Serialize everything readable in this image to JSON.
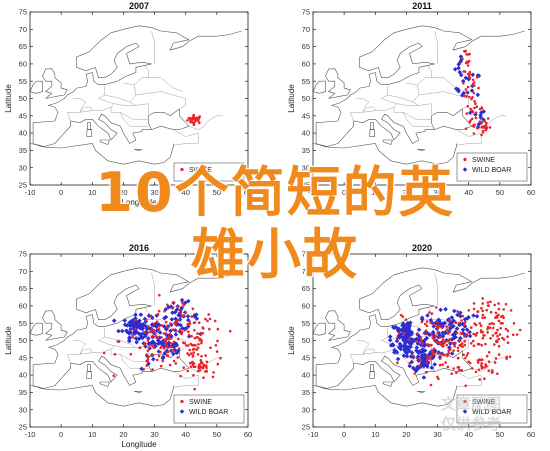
{
  "panels": [
    {
      "id": "p2007",
      "title": "2007",
      "show_ylabel": true,
      "show_xlabel": true,
      "legend": [
        "SWINE"
      ],
      "swine": {
        "clusters": [
          [
            43,
            44,
            1.2,
            0.6,
            30
          ]
        ]
      },
      "boar": {
        "clusters": []
      }
    },
    {
      "id": "p2011",
      "title": "2011",
      "show_ylabel": true,
      "show_xlabel": false,
      "legend": [
        "SWINE",
        "WILD BOAR"
      ],
      "swine": {
        "clusters": [
          [
            40,
            55,
            1.5,
            3.5,
            25
          ],
          [
            42,
            45,
            1.5,
            2.5,
            25
          ],
          [
            44,
            42,
            1.5,
            1.5,
            20
          ],
          [
            39,
            62,
            1.0,
            1.5,
            8
          ]
        ]
      },
      "boar": {
        "clusters": [
          [
            40,
            53,
            2.0,
            2.5,
            15
          ],
          [
            38,
            60,
            1.5,
            2.0,
            8
          ],
          [
            43,
            44,
            1.2,
            1.5,
            10
          ]
        ]
      }
    },
    {
      "id": "p2016",
      "title": "2016",
      "show_ylabel": true,
      "show_xlabel": true,
      "legend": [
        "SWINE",
        "WILD BOAR"
      ],
      "swine": {
        "clusters": [
          [
            35,
            50,
            8,
            4,
            110
          ],
          [
            45,
            48,
            4,
            4,
            45
          ],
          [
            38,
            58,
            3,
            2,
            20
          ],
          [
            44,
            42,
            2,
            1.5,
            25
          ],
          [
            30,
            45,
            3,
            2,
            15
          ]
        ]
      },
      "boar": {
        "clusters": [
          [
            24,
            54,
            2,
            1.5,
            70
          ],
          [
            30,
            52,
            4,
            3,
            70
          ],
          [
            38,
            57,
            3,
            2,
            40
          ],
          [
            34,
            47,
            3,
            2,
            25
          ]
        ]
      }
    },
    {
      "id": "p2020",
      "title": "2020",
      "show_ylabel": true,
      "show_xlabel": false,
      "legend": [
        "SWINE",
        "WILD BOAR"
      ],
      "swine": {
        "clusters": [
          [
            35,
            50,
            8,
            5,
            140
          ],
          [
            48,
            52,
            5,
            3,
            50
          ],
          [
            30,
            45,
            4,
            3,
            30
          ],
          [
            50,
            58,
            4,
            2,
            25
          ],
          [
            44,
            42,
            2,
            1.5,
            20
          ]
        ]
      },
      "boar": {
        "clusters": [
          [
            20,
            51,
            2.5,
            2.5,
            90
          ],
          [
            26,
            45,
            2,
            2,
            70
          ],
          [
            30,
            52,
            4,
            3,
            60
          ],
          [
            36,
            55,
            3,
            2,
            30
          ],
          [
            18,
            48,
            1.5,
            1.5,
            20
          ]
        ]
      }
    }
  ],
  "axis": {
    "xlabel": "Longitude",
    "ylabel": "Latitude",
    "xlim": [
      -10,
      60
    ],
    "ylim": [
      25,
      75
    ],
    "xticks": [
      -10,
      0,
      10,
      20,
      30,
      40,
      50,
      60
    ],
    "yticks": [
      25,
      30,
      35,
      40,
      45,
      50,
      55,
      60,
      65,
      70,
      75
    ]
  },
  "colors": {
    "swine": "#e8242a",
    "boar": "#2c2cd4",
    "coast": "#555555",
    "axis": "#222222"
  },
  "overlay": {
    "line1": "10个简短的英",
    "line2": "雄小故"
  },
  "watermark": {
    "line1": "文章配图",
    "line2": "仅供参考"
  }
}
